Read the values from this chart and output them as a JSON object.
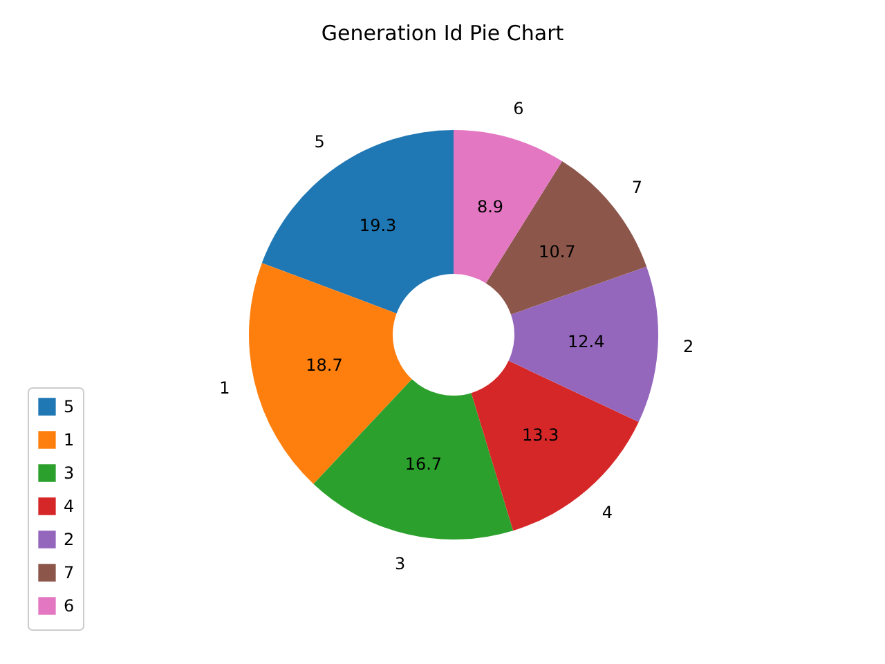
{
  "chart_data": {
    "type": "donut",
    "title": "Generation Id Pie Chart",
    "categories": [
      "5",
      "1",
      "3",
      "4",
      "2",
      "7",
      "6"
    ],
    "values": [
      19.3,
      18.7,
      16.7,
      13.3,
      12.4,
      10.7,
      8.9
    ],
    "colors": [
      "#1f77b4",
      "#ff7f0e",
      "#2ca02c",
      "#d62728",
      "#9467bd",
      "#8c564b",
      "#e377c2"
    ],
    "data_labels": true,
    "legend": "bottom left"
  }
}
